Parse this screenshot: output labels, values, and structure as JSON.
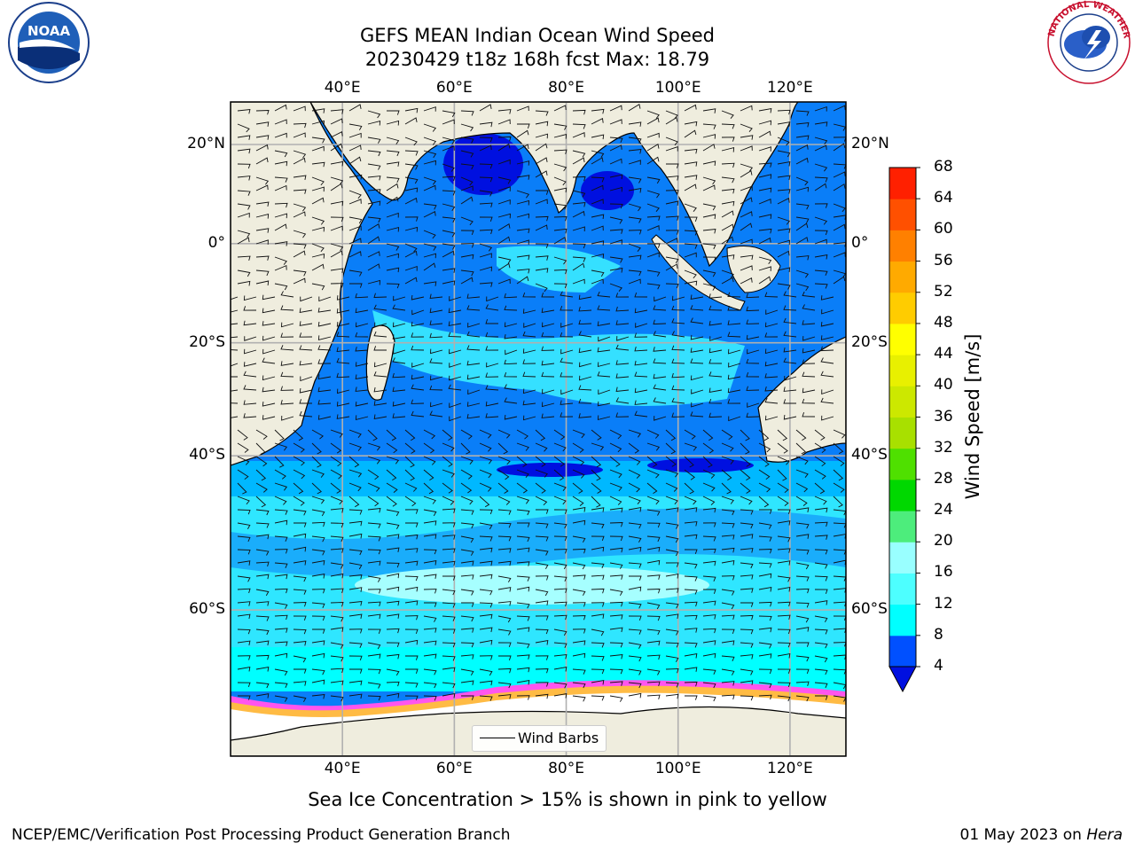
{
  "title": {
    "line1": "GEFS MEAN Indian Ocean Wind Speed",
    "line2": "20230429 t18z 168h fcst   Max: 18.79"
  },
  "map": {
    "projection": "Mercator",
    "lon_range": [
      20,
      130
    ],
    "lat_range": [
      -72,
      28
    ],
    "lon_ticks": [
      {
        "value": 40,
        "label": "40°E"
      },
      {
        "value": 60,
        "label": "60°E"
      },
      {
        "value": 80,
        "label": "80°E"
      },
      {
        "value": 100,
        "label": "100°E"
      },
      {
        "value": 120,
        "label": "120°E"
      }
    ],
    "lat_ticks": [
      {
        "value": 20,
        "label": "20°N"
      },
      {
        "value": 0,
        "label": "0°"
      },
      {
        "value": -20,
        "label": "20°S"
      },
      {
        "value": -40,
        "label": "40°S"
      },
      {
        "value": -60,
        "label": "60°S"
      }
    ],
    "gridlines": true,
    "land_color": "#efedde",
    "ocean_pattern": "wind speed shading with wind barbs"
  },
  "colorbar": {
    "label": "Wind Speed [m/s]",
    "ticks": [
      "4",
      "8",
      "12",
      "16",
      "20",
      "24",
      "28",
      "32",
      "36",
      "40",
      "44",
      "48",
      "52",
      "56",
      "60",
      "64",
      "68"
    ],
    "colors": [
      "#0050ff",
      "#00ffff",
      "#4dffff",
      "#99ffff",
      "#4ded7c",
      "#00d800",
      "#4fe000",
      "#a8e000",
      "#cce800",
      "#e8f000",
      "#ffff00",
      "#ffcc00",
      "#ffaa00",
      "#ff8000",
      "#ff5000",
      "#ff2000"
    ],
    "extend": "min"
  },
  "legend": {
    "label": "Wind Barbs",
    "location": "bottom-center"
  },
  "note": "Sea Ice Concentration > 15% is shown in pink to yellow",
  "footer": {
    "left": "NCEP/EMC/Verification Post Processing Product Generation Branch",
    "right_date": "01 May 2023 on ",
    "right_host": "Hera"
  },
  "logos": {
    "left": {
      "text": "NOAA",
      "ring": "NATIONAL OCEANIC AND ATMOSPHERIC ADMINISTRATION · U.S. DEPARTMENT OF COMMERCE"
    },
    "right": {
      "ring": "NATIONAL WEATHER SERVICE"
    }
  }
}
